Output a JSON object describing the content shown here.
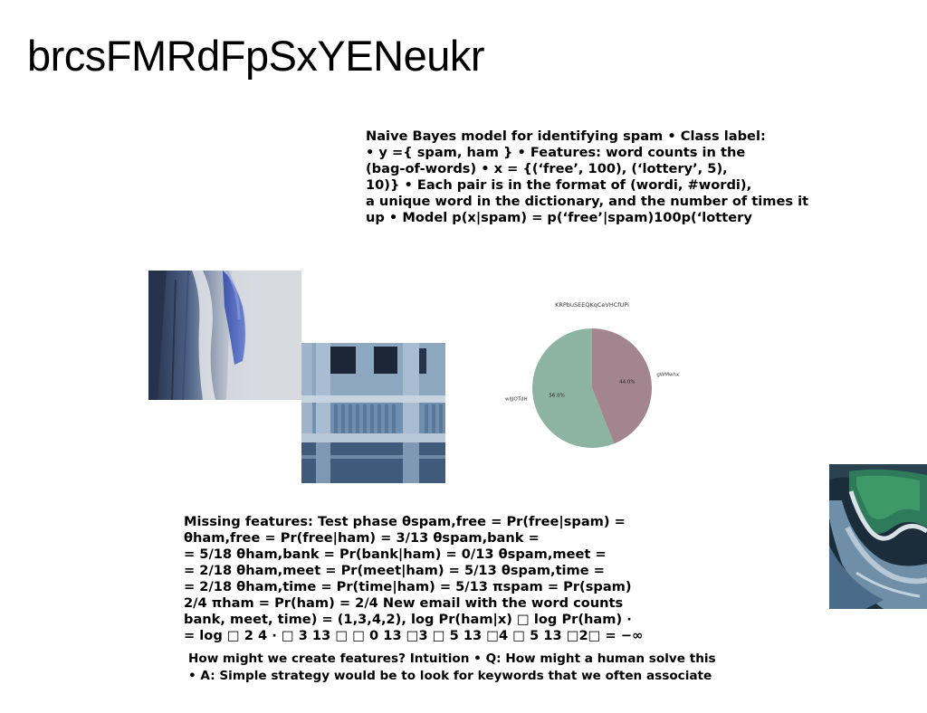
{
  "page": {
    "title": "brcsFMRdFpSxYENeukr"
  },
  "paragraphs": {
    "top": [
      "Naive Bayes model for identifying spam • Class label:",
      "• y ={ spam, ham } • Features: word counts in the",
      "(bag-of-words) • x = {(‘free’, 100), (‘lottery’, 5),",
      "10)} • Each pair is in the format of (wordi, #wordi),",
      "a unique word in the dictionary, and the number of times it",
      "up • Model p(x|spam) = p(‘free’|spam)100p(‘lottery"
    ],
    "middle": [
      "Missing features: Test phase θspam,free = Pr(free|spam) =",
      "θham,free = Pr(free|ham) = 3/13 θspam,bank =",
      "= 5/18 θham,bank = Pr(bank|ham) = 0/13 θspam,meet =",
      "= 2/18 θham,meet = Pr(meet|ham) = 5/13 θspam,time =",
      "= 2/18 θham,time = Pr(time|ham) = 5/13 πspam = Pr(spam)",
      "2/4 πham = Pr(ham) = 2/4 New email with the word counts",
      "bank, meet, time) = (1,3,4,2), log Pr(ham|x) □ log Pr(ham) ·",
      "= log □ 2 4 · □ 3 13 □ □ 0 13 □3 □ 5 13 □4 □ 5 13 □2□ = −∞"
    ],
    "bottom": [
      "How might we create features? Intuition • Q: How might a human solve this",
      "• A: Simple strategy would be to look for keywords that we often associate"
    ]
  },
  "chart_data": {
    "type": "pie",
    "title": "KRPbuSEEQKqCeVHCfUPi",
    "slices": [
      {
        "label": "gWMwhx",
        "value": 44.0,
        "pct_label": "44.0%",
        "color": "#a2858f"
      },
      {
        "label": "wIJJOTdH",
        "value": 56.0,
        "pct_label": "56.0%",
        "color": "#8db4a3"
      }
    ],
    "start_angle_deg": 90,
    "direction": "clockwise",
    "legend": "none"
  }
}
